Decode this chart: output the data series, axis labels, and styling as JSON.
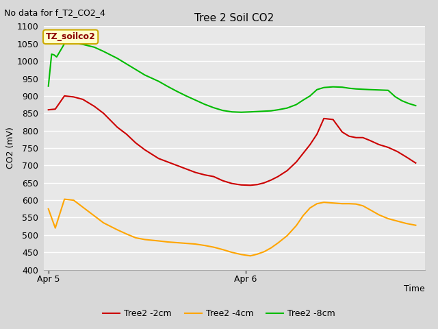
{
  "title": "Tree 2 Soil CO2",
  "subtitle": "No data for f_T2_CO2_4",
  "ylabel": "CO2 (mV)",
  "xlabel": "Time",
  "legend_label": "TZ_soilco2",
  "ylim": [
    400,
    1100
  ],
  "xlim": [
    -0.1,
    8.2
  ],
  "series": {
    "Tree2 -2cm": {
      "color": "#cc0000",
      "x": [
        0,
        0.15,
        0.35,
        0.55,
        0.75,
        1.0,
        1.2,
        1.5,
        1.7,
        1.9,
        2.1,
        2.4,
        2.6,
        2.8,
        3.0,
        3.2,
        3.4,
        3.6,
        3.8,
        4.0,
        4.2,
        4.4,
        4.55,
        4.7,
        4.85,
        5.0,
        5.2,
        5.4,
        5.55,
        5.7,
        5.85,
        6.0,
        6.2,
        6.4,
        6.55,
        6.7,
        6.85,
        7.0,
        7.2,
        7.4,
        7.6,
        7.8,
        8.0
      ],
      "y": [
        860,
        862,
        900,
        897,
        890,
        870,
        850,
        810,
        790,
        765,
        745,
        720,
        710,
        700,
        690,
        680,
        673,
        668,
        656,
        648,
        644,
        643,
        645,
        650,
        658,
        668,
        685,
        710,
        735,
        760,
        790,
        835,
        832,
        796,
        784,
        780,
        780,
        772,
        760,
        752,
        740,
        724,
        707
      ]
    },
    "Tree2 -4cm": {
      "color": "#ffa500",
      "x": [
        0,
        0.15,
        0.35,
        0.55,
        0.75,
        1.0,
        1.2,
        1.5,
        1.7,
        1.9,
        2.1,
        2.4,
        2.6,
        2.8,
        3.0,
        3.2,
        3.4,
        3.6,
        3.8,
        4.0,
        4.2,
        4.4,
        4.55,
        4.7,
        4.85,
        5.0,
        5.2,
        5.4,
        5.55,
        5.7,
        5.85,
        6.0,
        6.2,
        6.4,
        6.55,
        6.7,
        6.85,
        7.0,
        7.2,
        7.4,
        7.6,
        7.8,
        8.0
      ],
      "y": [
        575,
        520,
        603,
        600,
        580,
        555,
        535,
        515,
        503,
        492,
        487,
        483,
        480,
        478,
        476,
        474,
        470,
        465,
        458,
        450,
        444,
        440,
        445,
        452,
        463,
        477,
        498,
        527,
        556,
        578,
        590,
        594,
        592,
        590,
        590,
        589,
        584,
        573,
        558,
        547,
        540,
        533,
        528
      ]
    },
    "Tree2 -8cm": {
      "color": "#00bb00",
      "x": [
        0,
        0.07,
        0.12,
        0.18,
        0.35,
        0.55,
        0.75,
        1.0,
        1.2,
        1.5,
        1.7,
        1.9,
        2.1,
        2.4,
        2.6,
        2.8,
        3.0,
        3.2,
        3.4,
        3.6,
        3.8,
        4.0,
        4.2,
        4.4,
        4.55,
        4.7,
        4.85,
        5.0,
        5.2,
        5.4,
        5.55,
        5.7,
        5.85,
        6.0,
        6.2,
        6.4,
        6.55,
        6.7,
        6.85,
        7.0,
        7.2,
        7.4,
        7.55,
        7.7,
        7.85,
        8.0
      ],
      "y": [
        928,
        1020,
        1018,
        1012,
        1050,
        1052,
        1048,
        1040,
        1028,
        1008,
        992,
        976,
        960,
        942,
        927,
        913,
        900,
        888,
        876,
        866,
        858,
        854,
        853,
        854,
        855,
        856,
        857,
        860,
        865,
        875,
        888,
        900,
        918,
        924,
        926,
        925,
        922,
        920,
        919,
        918,
        917,
        916,
        898,
        886,
        878,
        872
      ]
    }
  },
  "xtick_positions": [
    0.0,
    4.3
  ],
  "xtick_labels": [
    "Apr 5",
    "Apr 6"
  ],
  "yticks": [
    400,
    450,
    500,
    550,
    600,
    650,
    700,
    750,
    800,
    850,
    900,
    950,
    1000,
    1050,
    1100
  ],
  "title_fontsize": 11,
  "subtitle_fontsize": 9,
  "axis_fontsize": 9,
  "tick_fontsize": 9,
  "legend_fontsize": 9
}
